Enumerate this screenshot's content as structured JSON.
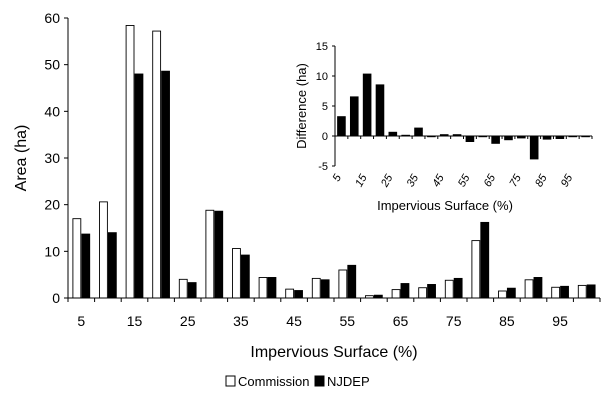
{
  "chart_data": [
    {
      "type": "bar",
      "title": "",
      "xlabel": "Impervious Surface (%)",
      "ylabel": "Area (ha)",
      "x": [
        5,
        10,
        15,
        20,
        25,
        30,
        35,
        40,
        45,
        50,
        55,
        60,
        65,
        70,
        75,
        80,
        85,
        90,
        95,
        100
      ],
      "xticks": [
        "5",
        "15",
        "25",
        "35",
        "45",
        "55",
        "65",
        "75",
        "85",
        "95"
      ],
      "ylim": [
        0,
        60
      ],
      "yticks": [
        "0",
        "10",
        "20",
        "30",
        "40",
        "50",
        "60"
      ],
      "grid": false,
      "legend_placement": "bottom-center",
      "series": [
        {
          "name": "Commission",
          "color": "#ffffff",
          "values": [
            17.0,
            20.6,
            58.4,
            57.2,
            4.0,
            18.8,
            10.6,
            4.4,
            1.9,
            4.2,
            6.0,
            0.5,
            1.8,
            2.2,
            3.8,
            12.3,
            1.5,
            3.9,
            2.3,
            2.7
          ]
        },
        {
          "name": "NJDEP",
          "color": "#000000",
          "values": [
            13.7,
            14.0,
            48.0,
            48.6,
            3.3,
            18.6,
            9.2,
            4.4,
            1.6,
            3.9,
            7.0,
            0.6,
            3.1,
            2.9,
            4.2,
            16.2,
            2.1,
            4.4,
            2.5,
            2.8
          ]
        }
      ]
    },
    {
      "type": "bar",
      "title": "",
      "xlabel": "Impervious Surface (%)",
      "ylabel": "Difference (ha)",
      "x": [
        5,
        10,
        15,
        20,
        25,
        30,
        35,
        40,
        45,
        50,
        55,
        60,
        65,
        70,
        75,
        80,
        85,
        90,
        95,
        100
      ],
      "xticks": [
        "5",
        "15",
        "25",
        "35",
        "45",
        "55",
        "65",
        "75",
        "85",
        "95"
      ],
      "ylim": [
        -5,
        15
      ],
      "yticks": [
        "-5",
        "0",
        "5",
        "10",
        "15"
      ],
      "grid": false,
      "placement": "inset top-right",
      "series": [
        {
          "color": "#000000",
          "values": [
            3.3,
            6.6,
            10.4,
            8.6,
            0.7,
            0.2,
            1.4,
            0.0,
            0.3,
            0.3,
            -1.0,
            -0.1,
            -1.3,
            -0.7,
            -0.4,
            -3.9,
            -0.6,
            -0.5,
            -0.2,
            -0.1
          ]
        }
      ]
    }
  ]
}
